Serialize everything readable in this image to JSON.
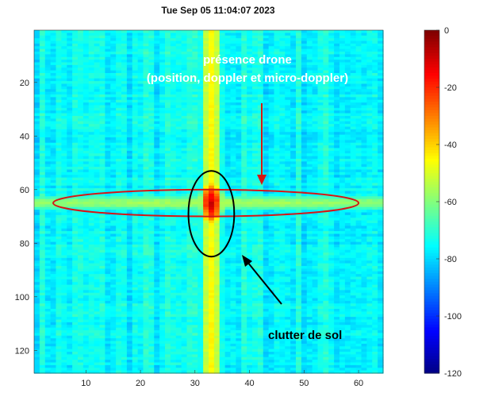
{
  "chart_data": {
    "type": "heatmap",
    "title": "Tue Sep 05 11:04:07 2023",
    "xlim": [
      0.5,
      64.5
    ],
    "ylim": [
      0.5,
      128.5
    ],
    "x_ticks": [
      10,
      20,
      30,
      40,
      50,
      60
    ],
    "y_ticks": [
      20,
      40,
      60,
      80,
      100,
      120
    ],
    "colorbar": {
      "range": [
        -120,
        0
      ],
      "ticks": [
        0,
        -20,
        -40,
        -60,
        -80,
        -100,
        -120
      ],
      "colormap": "jet"
    },
    "features": {
      "background_level_db": -75,
      "vertical_band": {
        "x_center": 33,
        "peak_db": -45
      },
      "horizontal_band": {
        "y_center": 65,
        "peak_db": -55
      },
      "hotspot": {
        "x": 33,
        "y": 65,
        "peak_db": -10
      }
    },
    "annotations": {
      "drone_label_line1": "présence drone",
      "drone_label_line2": "(position, doppler et micro-doppler)",
      "clutter_label": "clutter de sol",
      "red_ellipse": {
        "x_center": 32,
        "y_center": 65,
        "x_halfwidth": 28,
        "y_halfwidth": 5
      },
      "black_ellipse": {
        "x_center": 33,
        "y_center": 69,
        "x_halfwidth": 4.2,
        "y_halfwidth": 16
      }
    }
  }
}
